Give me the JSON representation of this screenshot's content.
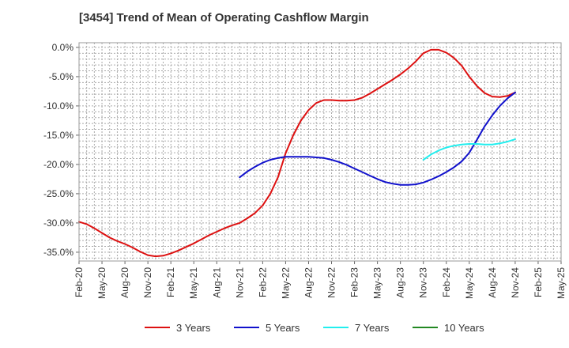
{
  "chart_data": {
    "type": "line",
    "title": "[3454]  Trend of Mean of Operating Cashflow Margin",
    "xlabel": "",
    "ylabel": "",
    "x_ticks": [
      "Feb-20",
      "May-20",
      "Aug-20",
      "Nov-20",
      "Feb-21",
      "May-21",
      "Aug-21",
      "Nov-21",
      "Feb-22",
      "May-22",
      "Aug-22",
      "Nov-22",
      "Feb-23",
      "May-23",
      "Aug-23",
      "Nov-23",
      "Feb-24",
      "May-24",
      "Aug-24",
      "Nov-24",
      "Feb-25",
      "May-25"
    ],
    "y_ticks": [
      "0.0%",
      "-5.0%",
      "-10.0%",
      "-15.0%",
      "-20.0%",
      "-25.0%",
      "-30.0%",
      "-35.0%"
    ],
    "y_tick_values": [
      0,
      -5,
      -10,
      -15,
      -20,
      -25,
      -30,
      -35
    ],
    "ylim": [
      -36.5,
      0.8
    ],
    "grid": true,
    "legend_position": "bottom",
    "series": [
      {
        "name": "3 Years",
        "color": "#dd1111",
        "x": [
          "Feb-20",
          "Mar-20",
          "Apr-20",
          "May-20",
          "Jun-20",
          "Jul-20",
          "Aug-20",
          "Sep-20",
          "Oct-20",
          "Nov-20",
          "Dec-20",
          "Jan-21",
          "Feb-21",
          "Mar-21",
          "Apr-21",
          "May-21",
          "Jun-21",
          "Jul-21",
          "Aug-21",
          "Sep-21",
          "Oct-21",
          "Nov-21",
          "Dec-21",
          "Jan-22",
          "Feb-22",
          "Mar-22",
          "Apr-22",
          "May-22",
          "Jun-22",
          "Jul-22",
          "Aug-22",
          "Sep-22",
          "Oct-22",
          "Nov-22",
          "Dec-22",
          "Jan-23",
          "Feb-23",
          "Mar-23",
          "Apr-23",
          "May-23",
          "Jun-23",
          "Jul-23",
          "Aug-23",
          "Sep-23",
          "Oct-23",
          "Nov-23",
          "Dec-23",
          "Jan-24",
          "Feb-24",
          "Mar-24",
          "Apr-24",
          "May-24",
          "Jun-24",
          "Jul-24",
          "Aug-24",
          "Sep-24",
          "Oct-24",
          "Nov-24"
        ],
        "values": [
          -29.8,
          -30.2,
          -30.9,
          -31.7,
          -32.5,
          -33.1,
          -33.6,
          -34.2,
          -34.9,
          -35.5,
          -35.7,
          -35.6,
          -35.2,
          -34.7,
          -34.1,
          -33.5,
          -32.8,
          -32.1,
          -31.5,
          -30.9,
          -30.4,
          -30.0,
          -29.2,
          -28.3,
          -27.0,
          -25.0,
          -22.2,
          -18.1,
          -15.0,
          -12.5,
          -10.7,
          -9.5,
          -9.0,
          -9.0,
          -9.1,
          -9.1,
          -9.0,
          -8.6,
          -7.9,
          -7.1,
          -6.3,
          -5.5,
          -4.6,
          -3.6,
          -2.4,
          -1.0,
          -0.4,
          -0.4,
          -0.9,
          -1.8,
          -3.1,
          -5.0,
          -6.6,
          -7.8,
          -8.4,
          -8.5,
          -8.3,
          -7.7
        ]
      },
      {
        "name": "5 Years",
        "color": "#1111cc",
        "x": [
          "Nov-21",
          "Dec-21",
          "Jan-22",
          "Feb-22",
          "Mar-22",
          "Apr-22",
          "May-22",
          "Jun-22",
          "Jul-22",
          "Aug-22",
          "Sep-22",
          "Oct-22",
          "Nov-22",
          "Dec-22",
          "Jan-23",
          "Feb-23",
          "Mar-23",
          "Apr-23",
          "May-23",
          "Jun-23",
          "Jul-23",
          "Aug-23",
          "Sep-23",
          "Oct-23",
          "Nov-23",
          "Dec-23",
          "Jan-24",
          "Feb-24",
          "Mar-24",
          "Apr-24",
          "May-24",
          "Jun-24",
          "Jul-24",
          "Aug-24",
          "Sep-24",
          "Oct-24",
          "Nov-24"
        ],
        "values": [
          -22.2,
          -21.2,
          -20.4,
          -19.7,
          -19.2,
          -18.9,
          -18.7,
          -18.7,
          -18.7,
          -18.7,
          -18.8,
          -18.9,
          -19.2,
          -19.6,
          -20.1,
          -20.7,
          -21.3,
          -21.9,
          -22.5,
          -23.0,
          -23.3,
          -23.5,
          -23.5,
          -23.4,
          -23.1,
          -22.6,
          -22.0,
          -21.3,
          -20.5,
          -19.5,
          -18.0,
          -15.8,
          -13.5,
          -11.6,
          -10.0,
          -8.7,
          -7.7
        ]
      },
      {
        "name": "7 Years",
        "color": "#22eeee",
        "x": [
          "Nov-23",
          "Dec-23",
          "Jan-24",
          "Feb-24",
          "Mar-24",
          "Apr-24",
          "May-24",
          "Jun-24",
          "Jul-24",
          "Aug-24",
          "Sep-24",
          "Oct-24",
          "Nov-24"
        ],
        "values": [
          -19.2,
          -18.3,
          -17.6,
          -17.1,
          -16.8,
          -16.6,
          -16.5,
          -16.5,
          -16.6,
          -16.6,
          -16.4,
          -16.1,
          -15.7
        ]
      },
      {
        "name": "10 Years",
        "color": "#228822",
        "x": [],
        "values": []
      }
    ]
  }
}
